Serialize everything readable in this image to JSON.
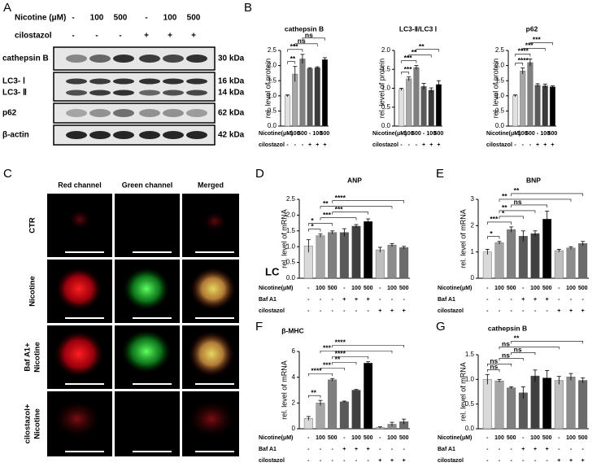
{
  "panel_labels": [
    "A",
    "B",
    "C",
    "D",
    "E",
    "F",
    "G"
  ],
  "blot": {
    "header_rows": [
      {
        "name": "Nicotine (μM)",
        "labels": [
          "-",
          "100",
          "500",
          "-",
          "100",
          "500"
        ]
      },
      {
        "name": "cilostazol",
        "labels": [
          "-",
          "-",
          "-",
          "+",
          "+",
          "+"
        ]
      }
    ],
    "rows": [
      {
        "name": "cathepsin B",
        "size": "30 kDa"
      },
      {
        "name": "LC3- Ⅰ",
        "size": "16 kDa"
      },
      {
        "name": "LC3- Ⅱ",
        "size": "14 kDa"
      },
      {
        "name": "p62",
        "size": "62 kDa"
      },
      {
        "name": "β-actin",
        "size": "42 kDa"
      }
    ]
  },
  "imaging": {
    "columns": [
      "Red channel",
      "Green channel",
      "Merged"
    ],
    "rows": [
      [
        "CTR"
      ],
      [
        "Nicotine"
      ],
      [
        "Baf A1+",
        "Nicotine"
      ],
      [
        "cilostazol+",
        "Nicotine"
      ]
    ]
  },
  "chart_data": [
    {
      "type": "bar",
      "title": "cathepsin B",
      "ylabel": "rel. level of protein",
      "category_label": "Nicotine(μM)",
      "categories": [
        "-",
        "100",
        "500",
        "-",
        "100",
        "500"
      ],
      "conditions": [
        {
          "name": "cilostazol",
          "labels": [
            "-",
            "-",
            "-",
            "+",
            "+",
            "+"
          ]
        }
      ],
      "values": [
        1.0,
        1.72,
        2.22,
        1.9,
        1.93,
        2.2
      ],
      "errors": [
        0.03,
        0.25,
        0.15,
        0.03,
        0.03,
        0.06
      ],
      "colors": [
        "#e0e0e0",
        "#a6a6a6",
        "#7f7f7f",
        "#5a5a5a",
        "#3a3a3a",
        "#000000"
      ],
      "ylim": [
        0,
        2.5
      ],
      "yticks": [
        {
          "value": 0,
          "label": "0.0"
        },
        {
          "value": 0.5,
          "label": "0.5"
        },
        {
          "value": 1,
          "label": "1.0"
        },
        {
          "value": 1.5,
          "label": "1.5"
        },
        {
          "value": 2,
          "label": "2.0"
        },
        {
          "value": 2.5,
          "label": "2.5"
        }
      ],
      "annotations": [
        "**",
        "***",
        "ns",
        "ns"
      ]
    },
    {
      "type": "bar",
      "title": "LC3-Ⅱ/LC3 Ⅰ",
      "ylabel": "rel. level of protein",
      "category_label": "Nicotine(μM)",
      "categories": [
        "-",
        "100",
        "500",
        "-",
        "100",
        "500"
      ],
      "conditions": [
        {
          "name": "cilostazol",
          "labels": [
            "-",
            "-",
            "-",
            "+",
            "+",
            "+"
          ]
        }
      ],
      "values": [
        0.97,
        1.25,
        1.55,
        1.05,
        0.95,
        1.1
      ],
      "errors": [
        0.03,
        0.05,
        0.05,
        0.08,
        0.06,
        0.1
      ],
      "colors": [
        "#e0e0e0",
        "#a6a6a6",
        "#7f7f7f",
        "#5a5a5a",
        "#3a3a3a",
        "#000000"
      ],
      "ylim": [
        0,
        2
      ],
      "yticks": [
        {
          "value": 0,
          "label": "0.0"
        },
        {
          "value": 0.5,
          "label": "0.5"
        },
        {
          "value": 1,
          "label": "1.0"
        },
        {
          "value": 1.5,
          "label": "1.5"
        },
        {
          "value": 2,
          "label": "2.0"
        }
      ],
      "annotations": [
        "***",
        "***",
        "**",
        "**"
      ]
    },
    {
      "type": "bar",
      "title": "p62",
      "ylabel": "rel. level of protein",
      "category_label": "Nicotine(μM)",
      "categories": [
        "-",
        "100",
        "500",
        "-",
        "100",
        "500"
      ],
      "conditions": [
        {
          "name": "cilostazol",
          "labels": [
            "-",
            "-",
            "-",
            "+",
            "+",
            "+"
          ]
        }
      ],
      "values": [
        1.0,
        1.82,
        2.1,
        1.35,
        1.33,
        1.3
      ],
      "errors": [
        0.03,
        0.1,
        0.12,
        0.05,
        0.06,
        0.03
      ],
      "colors": [
        "#e0e0e0",
        "#a6a6a6",
        "#7f7f7f",
        "#5a5a5a",
        "#3a3a3a",
        "#000000"
      ],
      "ylim": [
        0,
        2.5
      ],
      "yticks": [
        {
          "value": 0,
          "label": "0.0"
        },
        {
          "value": 0.5,
          "label": "0.5"
        },
        {
          "value": 1,
          "label": "1.0"
        },
        {
          "value": 1.5,
          "label": "1.5"
        },
        {
          "value": 2,
          "label": "2.0"
        },
        {
          "value": 2.5,
          "label": "2.5"
        }
      ],
      "annotations": [
        "****",
        "****",
        "***",
        "***"
      ]
    },
    {
      "type": "bar",
      "title": "ANP",
      "ylabel": "rel. level of mRNA",
      "overlay_text": "LC",
      "category_label": "Nicotine(μM)",
      "categories": [
        "-",
        "100",
        "500",
        "-",
        "100",
        "500",
        "-",
        "100",
        "500"
      ],
      "conditions": [
        {
          "name": "Baf A1",
          "labels": [
            "-",
            "-",
            "-",
            "+",
            "+",
            "+",
            "-",
            "-",
            "-"
          ]
        },
        {
          "name": "cilostazol",
          "labels": [
            "-",
            "-",
            "-",
            "-",
            "-",
            "-",
            "+",
            "+",
            "+"
          ]
        }
      ],
      "values": [
        1.02,
        1.35,
        1.45,
        1.45,
        1.65,
        1.8,
        0.9,
        1.05,
        0.97
      ],
      "errors": [
        0.2,
        0.05,
        0.05,
        0.12,
        0.05,
        0.08,
        0.08,
        0.05,
        0.04
      ],
      "colors": [
        "#d9d9d9",
        "#a6a6a6",
        "#7f7f7f",
        "#595959",
        "#404040",
        "#000000",
        "#bfbfbf",
        "#8c8c8c",
        "#6b6b6b"
      ],
      "ylim": [
        0,
        2.5
      ],
      "yticks": [
        {
          "value": 0,
          "label": "0.0"
        },
        {
          "value": 0.5,
          "label": "0.5"
        },
        {
          "value": 1,
          "label": "1.0"
        },
        {
          "value": 1.5,
          "label": "1.5"
        },
        {
          "value": 2,
          "label": "2.0"
        },
        {
          "value": 2.5,
          "label": "2.5"
        }
      ],
      "annotations": [
        "*",
        "*",
        "***",
        "***",
        "**",
        "****"
      ]
    },
    {
      "type": "bar",
      "title": "BNP",
      "ylabel": "rel. level of mRNA",
      "category_label": "Nicotine(μM)",
      "categories": [
        "-",
        "100",
        "500",
        "-",
        "100",
        "500",
        "-",
        "100",
        "500"
      ],
      "conditions": [
        {
          "name": "Baf A1",
          "labels": [
            "-",
            "-",
            "-",
            "+",
            "+",
            "+",
            "-",
            "-",
            "-"
          ]
        },
        {
          "name": "cilostazol",
          "labels": [
            "-",
            "-",
            "-",
            "-",
            "-",
            "-",
            "+",
            "+",
            "+"
          ]
        }
      ],
      "values": [
        1.0,
        1.35,
        1.85,
        1.6,
        1.7,
        2.25,
        1.05,
        1.15,
        1.32
      ],
      "errors": [
        0.1,
        0.05,
        0.1,
        0.2,
        0.1,
        0.3,
        0.05,
        0.05,
        0.08
      ],
      "colors": [
        "#d9d9d9",
        "#a6a6a6",
        "#7f7f7f",
        "#595959",
        "#404040",
        "#000000",
        "#bfbfbf",
        "#8c8c8c",
        "#6b6b6b"
      ],
      "ylim": [
        0,
        3
      ],
      "yticks": [
        0,
        1,
        2,
        3
      ],
      "annotations": [
        "*",
        "***",
        "*",
        "**",
        "ns",
        "**",
        "**"
      ]
    },
    {
      "type": "bar",
      "title": "β-MHC",
      "ylabel": "rel. level of mRNA",
      "category_label": "Nicotine(μM)",
      "categories": [
        "-",
        "100",
        "500",
        "-",
        "100",
        "500",
        "-",
        "100",
        "500"
      ],
      "conditions": [
        {
          "name": "Baf A1",
          "labels": [
            "-",
            "-",
            "-",
            "+",
            "+",
            "+",
            "-",
            "-",
            "-"
          ]
        },
        {
          "name": "cilostazol",
          "labels": [
            "-",
            "-",
            "-",
            "-",
            "-",
            "-",
            "+",
            "+",
            "+"
          ]
        }
      ],
      "values": [
        0.8,
        2.0,
        3.8,
        2.1,
        3.0,
        5.1,
        0.1,
        0.35,
        0.55
      ],
      "errors": [
        0.15,
        0.2,
        0.1,
        0.05,
        0.05,
        0.1,
        0.05,
        0.15,
        0.2
      ],
      "colors": [
        "#d9d9d9",
        "#a6a6a6",
        "#7f7f7f",
        "#595959",
        "#404040",
        "#000000",
        "#bfbfbf",
        "#8c8c8c",
        "#6b6b6b"
      ],
      "ylim": [
        0,
        6
      ],
      "yticks": [
        0,
        2,
        4,
        6
      ],
      "annotations": [
        "**",
        "****",
        "***",
        "**",
        "****",
        "***",
        "****"
      ]
    },
    {
      "type": "bar",
      "title": "cathepsin B",
      "ylabel": "rel. level of mRNA",
      "category_label": "Nicotine(μM)",
      "categories": [
        "-",
        "100",
        "500",
        "-",
        "100",
        "500",
        "-",
        "100",
        "500"
      ],
      "conditions": [
        {
          "name": "Baf A1",
          "labels": [
            "-",
            "-",
            "-",
            "+",
            "+",
            "+",
            "-",
            "-",
            "-"
          ]
        },
        {
          "name": "cilostazol",
          "labels": [
            "-",
            "-",
            "-",
            "-",
            "-",
            "-",
            "+",
            "+",
            "+"
          ]
        }
      ],
      "values": [
        1.0,
        0.97,
        0.83,
        0.73,
        1.07,
        1.03,
        0.98,
        1.05,
        0.98
      ],
      "errors": [
        0.1,
        0.03,
        0.02,
        0.12,
        0.12,
        0.15,
        0.08,
        0.07,
        0.05
      ],
      "colors": [
        "#d9d9d9",
        "#a6a6a6",
        "#7f7f7f",
        "#595959",
        "#404040",
        "#000000",
        "#bfbfbf",
        "#8c8c8c",
        "#6b6b6b"
      ],
      "ylim": [
        0,
        1.5
      ],
      "yticks": [
        {
          "value": 0,
          "label": "0.0"
        },
        {
          "value": 0.5,
          "label": "0.5"
        },
        {
          "value": 1,
          "label": "1.0"
        },
        {
          "value": 1.5,
          "label": "1.5"
        }
      ],
      "annotations": [
        "ns",
        "ns",
        "ns",
        "ns",
        "ns",
        "**"
      ]
    }
  ]
}
